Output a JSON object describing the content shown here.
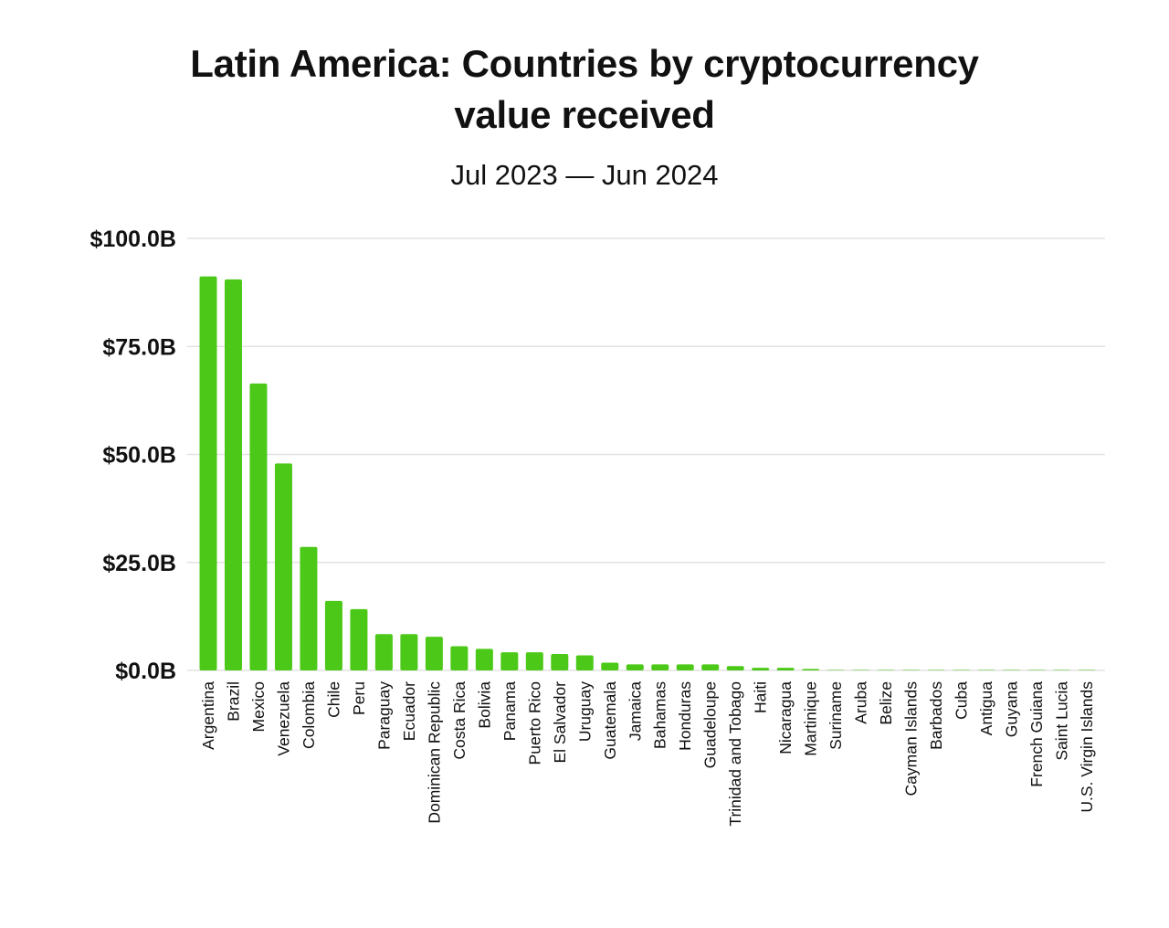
{
  "chart_data": {
    "type": "bar",
    "title": "Latin America: Countries by cryptocurrency value received",
    "title_lines": [
      "Latin America: Countries by cryptocurrency",
      "value received"
    ],
    "subtitle": "Jul 2023 — Jun 2024",
    "xlabel": "",
    "ylabel": "",
    "ylim": [
      0,
      100
    ],
    "yticks": [
      0,
      25,
      50,
      75,
      100
    ],
    "ytick_labels": [
      "$0.0B",
      "$25.0B",
      "$50.0B",
      "$75.0B",
      "$100.0B"
    ],
    "grid": true,
    "bar_color": "#4cc918",
    "categories": [
      "Argentina",
      "Brazil",
      "Mexico",
      "Venezuela",
      "Colombia",
      "Chile",
      "Peru",
      "Paraguay",
      "Ecuador",
      "Dominican Republic",
      "Costa Rica",
      "Bolivia",
      "Panama",
      "Puerto Rico",
      "El Salvador",
      "Uruguay",
      "Guatemala",
      "Jamaica",
      "Bahamas",
      "Honduras",
      "Guadeloupe",
      "Trinidad and Tobago",
      "Haiti",
      "Nicaragua",
      "Martinique",
      "Suriname",
      "Aruba",
      "Belize",
      "Cayman Islands",
      "Barbados",
      "Cuba",
      "Antigua",
      "Guyana",
      "French Guiana",
      "Saint Lucia",
      "U.S. Virgin Islands"
    ],
    "values": [
      91.2,
      90.5,
      66.4,
      47.9,
      28.6,
      16.1,
      14.2,
      8.4,
      8.4,
      7.8,
      5.6,
      5.0,
      4.2,
      4.2,
      3.8,
      3.5,
      1.8,
      1.4,
      1.4,
      1.4,
      1.4,
      1.0,
      0.6,
      0.6,
      0.35,
      0.05,
      0.03,
      0.02,
      0.02,
      0.01,
      0.01,
      0.01,
      0.01,
      0.01,
      0.01,
      0.01
    ]
  }
}
